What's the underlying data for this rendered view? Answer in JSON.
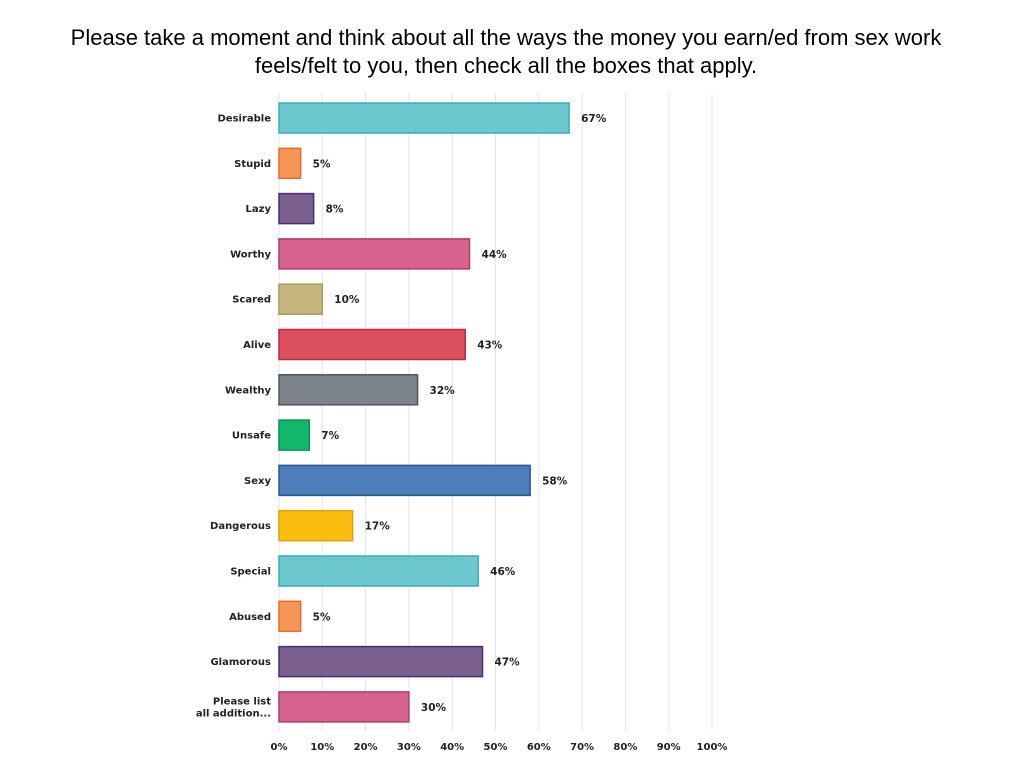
{
  "chart_data": {
    "type": "bar",
    "orientation": "horizontal",
    "title_lines": [
      "Please take a moment and think about all the ways the money you earn/ed from sex work",
      "feels/felt to you, then check all the boxes that apply."
    ],
    "xlim": [
      0,
      100
    ],
    "x_ticks": [
      "0%",
      "10%",
      "20%",
      "30%",
      "40%",
      "50%",
      "60%",
      "70%",
      "80%",
      "90%",
      "100%"
    ],
    "grid": "vertical",
    "bars": [
      {
        "category": "Desirable",
        "value": 67,
        "label": "67%",
        "color": "#6CC8CE",
        "border": "#3BAEB5"
      },
      {
        "category": "Stupid",
        "value": 5,
        "label": "5%",
        "color": "#F79457",
        "border": "#E0702E"
      },
      {
        "category": "Lazy",
        "value": 8,
        "label": "8%",
        "color": "#7B5F8E",
        "border": "#4B2E68"
      },
      {
        "category": "Worthy",
        "value": 44,
        "label": "44%",
        "color": "#D6628F",
        "border": "#B43A6C"
      },
      {
        "category": "Scared",
        "value": 10,
        "label": "10%",
        "color": "#C6B77F",
        "border": "#A99A5E"
      },
      {
        "category": "Alive",
        "value": 43,
        "label": "43%",
        "color": "#DC4F5E",
        "border": "#B72B3E"
      },
      {
        "category": "Wealthy",
        "value": 32,
        "label": "32%",
        "color": "#7C8489",
        "border": "#4F575D"
      },
      {
        "category": "Unsafe",
        "value": 7,
        "label": "7%",
        "color": "#12B86A",
        "border": "#079255"
      },
      {
        "category": "Sexy",
        "value": 58,
        "label": "58%",
        "color": "#4F7DBA",
        "border": "#2E548F"
      },
      {
        "category": "Dangerous",
        "value": 17,
        "label": "17%",
        "color": "#FABE0E",
        "border": "#DDA200"
      },
      {
        "category": "Special",
        "value": 46,
        "label": "46%",
        "color": "#6CC8CE",
        "border": "#3BAEB5"
      },
      {
        "category": "Abused",
        "value": 5,
        "label": "5%",
        "color": "#F79457",
        "border": "#E0702E"
      },
      {
        "category": "Glamorous",
        "value": 47,
        "label": "47%",
        "color": "#7B5F8E",
        "border": "#4B2E68"
      },
      {
        "category": [
          "Please list",
          "all addition..."
        ],
        "value": 30,
        "label": "30%",
        "color": "#D6628F",
        "border": "#B43A6C"
      }
    ]
  }
}
